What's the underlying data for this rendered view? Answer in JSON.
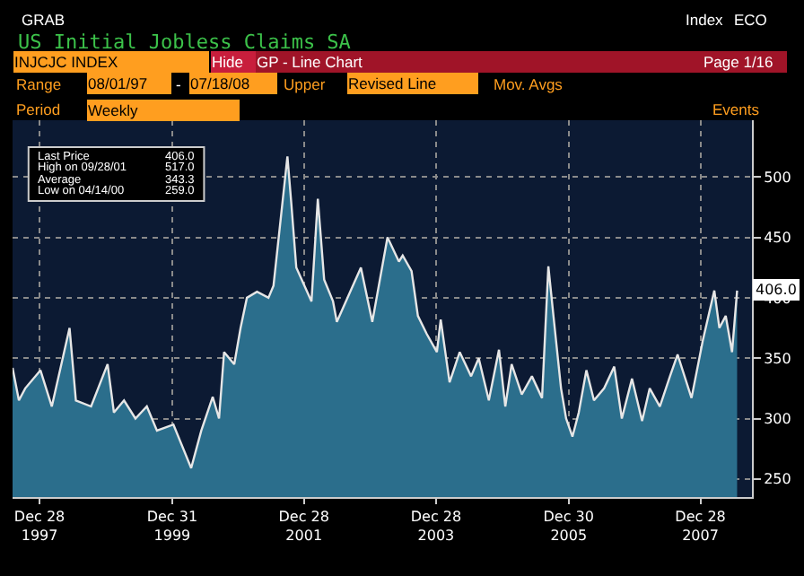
{
  "chart_data": {
    "type": "area",
    "title": "US Initial Jobless Claims SA",
    "x": [
      "1997-08-01",
      "1997-09-05",
      "1997-10-10",
      "1998-01-02",
      "1998-03-06",
      "1998-06-12",
      "1998-07-17",
      "1998-10-09",
      "1999-01-08",
      "1999-02-12",
      "1999-04-09",
      "1999-06-11",
      "1999-08-13",
      "1999-10-08",
      "2000-01-07",
      "2000-04-14",
      "2000-06-09",
      "2000-08-11",
      "2000-09-15",
      "2000-10-13",
      "2000-12-08",
      "2001-01-12",
      "2001-02-16",
      "2001-04-13",
      "2001-06-15",
      "2001-07-13",
      "2001-09-28",
      "2001-10-19",
      "2001-11-16",
      "2002-02-08",
      "2002-03-15",
      "2002-04-19",
      "2002-06-07",
      "2002-06-28",
      "2002-11-08",
      "2003-01-10",
      "2003-04-04",
      "2003-06-06",
      "2003-06-27",
      "2003-08-15",
      "2003-09-19",
      "2003-11-07",
      "2004-01-02",
      "2004-01-23",
      "2004-03-12",
      "2004-05-07",
      "2004-07-09",
      "2004-08-20",
      "2004-10-15",
      "2004-12-10",
      "2005-01-14",
      "2005-02-18",
      "2005-04-15",
      "2005-06-10",
      "2005-08-05",
      "2005-09-09",
      "2005-10-07",
      "2005-11-18",
      "2005-12-16",
      "2006-01-20",
      "2006-02-24",
      "2006-04-07",
      "2006-05-19",
      "2006-07-14",
      "2006-09-08",
      "2006-10-20",
      "2006-12-15",
      "2007-02-09",
      "2007-03-23",
      "2007-05-18",
      "2007-07-13",
      "2007-08-24",
      "2007-11-09",
      "2008-01-11",
      "2008-03-14",
      "2008-04-11",
      "2008-05-16",
      "2008-06-20",
      "2008-07-18"
    ],
    "series": [
      {
        "color": "#2b6e8c",
        "values": [
          342,
          315,
          325,
          340,
          310,
          375,
          315,
          310,
          345,
          305,
          315,
          300,
          310,
          290,
          295,
          259,
          290,
          318,
          300,
          355,
          345,
          375,
          400,
          405,
          400,
          410,
          517,
          479,
          425,
          397,
          482,
          415,
          397,
          380,
          425,
          380,
          450,
          430,
          435,
          422,
          385,
          370,
          355,
          382,
          330,
          355,
          335,
          350,
          315,
          357,
          310,
          345,
          320,
          335,
          317,
          426,
          385,
          325,
          300,
          285,
          305,
          340,
          315,
          325,
          343,
          300,
          333,
          298,
          325,
          310,
          335,
          353,
          317,
          365,
          406,
          375,
          385,
          355,
          406
        ]
      }
    ],
    "xlim": [
      "1997-08-01",
      "2008-10-08"
    ],
    "xticks": [
      {
        "value": "1997-12-28",
        "label": "Dec 28\n1997"
      },
      {
        "value": "1999-12-31",
        "label": "Dec 31\n1999"
      },
      {
        "value": "2001-12-28",
        "label": "Dec 28\n2001"
      },
      {
        "value": "2003-12-28",
        "label": "Dec 28\n2003"
      },
      {
        "value": "2005-12-30",
        "label": "Dec 30\n2005"
      },
      {
        "value": "2007-12-28",
        "label": "Dec 28\n2007"
      }
    ],
    "ylim": [
      235,
      547
    ],
    "yticks": [
      250,
      300,
      350,
      400,
      450,
      500
    ],
    "grid": true,
    "marker": "none",
    "annotations": [
      "GRAB",
      "Index",
      "ECO",
      "INJCJC INDEX",
      "Hide",
      "GP - Line Chart",
      "Page 1/16",
      "Range",
      "08/01/97",
      "-",
      "07/18/08",
      "Upper",
      "Revised Line",
      "Mov. Avgs",
      "Period",
      "Weekly",
      "Events",
      "Last Price",
      "406.0",
      "High on 09/28/01",
      "517.0",
      "Average",
      "343.3",
      "Low on 04/14/00",
      "259.0",
      {
        "text": "406.0",
        "x": "2008-07-18",
        "y": 406
      }
    ]
  }
}
